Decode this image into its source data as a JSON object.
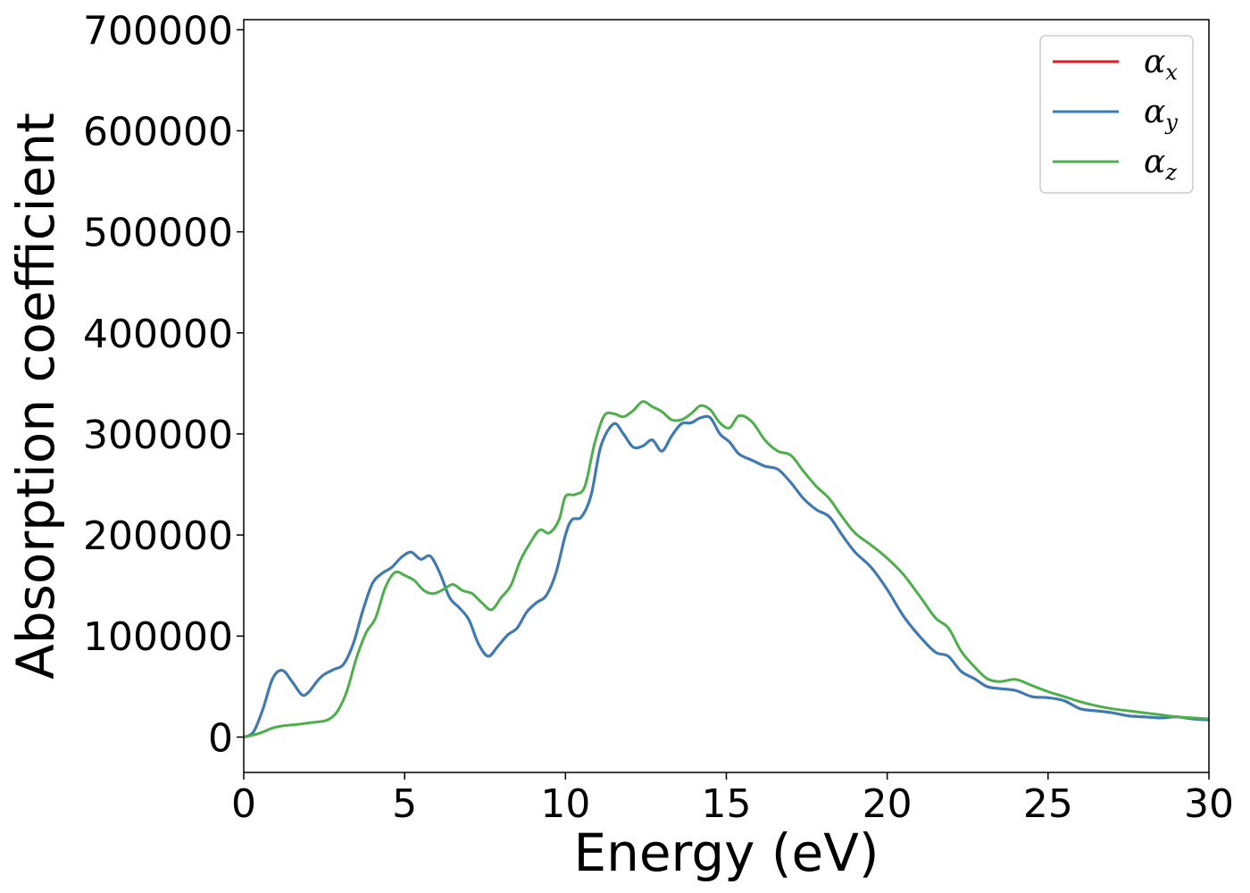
{
  "chart_data": {
    "type": "line",
    "xlabel": "Energy (eV)",
    "ylabel": "Absorption coefficient",
    "xlim": [
      0,
      30
    ],
    "ylim": [
      -35000,
      710000
    ],
    "x_ticks": [
      0,
      5,
      10,
      15,
      20,
      25,
      30
    ],
    "x_tick_labels": [
      "0",
      "5",
      "10",
      "15",
      "20",
      "25",
      "30"
    ],
    "y_ticks": [
      0,
      100000,
      200000,
      300000,
      400000,
      500000,
      600000,
      700000
    ],
    "y_tick_labels": [
      "0",
      "100000",
      "200000",
      "300000",
      "400000",
      "500000",
      "600000",
      "700000"
    ],
    "grid": false,
    "legend_position": "top-right",
    "series": [
      {
        "name": "α",
        "subscript": "x",
        "color": "#e41a1c",
        "x": [
          0,
          0.3,
          0.6,
          0.9,
          1.2,
          1.5,
          1.8,
          2.0,
          2.3,
          2.5,
          2.8,
          3.1,
          3.4,
          3.7,
          4.0,
          4.3,
          4.6,
          4.9,
          5.2,
          5.5,
          5.8,
          6.1,
          6.4,
          6.7,
          7.0,
          7.3,
          7.6,
          7.9,
          8.2,
          8.5,
          8.8,
          9.1,
          9.4,
          9.7,
          10.0,
          10.2,
          10.5,
          10.8,
          11.1,
          11.5,
          11.8,
          12.1,
          12.4,
          12.7,
          13.0,
          13.3,
          13.6,
          13.9,
          14.2,
          14.5,
          14.8,
          15.1,
          15.4,
          15.8,
          16.2,
          16.6,
          17.0,
          17.4,
          17.8,
          18.2,
          18.6,
          19.0,
          19.5,
          20.0,
          20.5,
          21.0,
          21.5,
          21.9,
          22.3,
          22.7,
          23.1,
          23.5,
          24.0,
          24.5,
          25.0,
          25.5,
          26.0,
          26.5,
          27.0,
          27.5,
          28.0,
          28.5,
          29.0,
          29.5,
          30.0
        ],
        "y": [
          0,
          5000,
          28000,
          58000,
          66000,
          55000,
          42000,
          44000,
          56000,
          62000,
          67000,
          72000,
          92000,
          125000,
          152000,
          162000,
          168000,
          178000,
          183000,
          176000,
          179000,
          162000,
          138000,
          128000,
          116000,
          92000,
          80000,
          90000,
          101000,
          108000,
          124000,
          133000,
          140000,
          162000,
          200000,
          215000,
          218000,
          240000,
          288000,
          310000,
          300000,
          287000,
          288000,
          294000,
          283000,
          298000,
          310000,
          311000,
          316000,
          316000,
          300000,
          292000,
          280000,
          274000,
          268000,
          265000,
          252000,
          236000,
          225000,
          218000,
          200000,
          183000,
          168000,
          146000,
          120000,
          100000,
          84000,
          80000,
          65000,
          58000,
          50000,
          48000,
          46000,
          40000,
          39000,
          36000,
          28000,
          26000,
          24000,
          21000,
          20000,
          19000,
          20000,
          18000,
          17000
        ]
      },
      {
        "name": "α",
        "subscript": "y",
        "color": "#377eb8",
        "x": [
          0,
          0.3,
          0.6,
          0.9,
          1.2,
          1.5,
          1.8,
          2.0,
          2.3,
          2.5,
          2.8,
          3.1,
          3.4,
          3.7,
          4.0,
          4.3,
          4.6,
          4.9,
          5.2,
          5.5,
          5.8,
          6.1,
          6.4,
          6.7,
          7.0,
          7.3,
          7.6,
          7.9,
          8.2,
          8.5,
          8.8,
          9.1,
          9.4,
          9.7,
          10.0,
          10.2,
          10.5,
          10.8,
          11.1,
          11.5,
          11.8,
          12.1,
          12.4,
          12.7,
          13.0,
          13.3,
          13.6,
          13.9,
          14.2,
          14.5,
          14.8,
          15.1,
          15.4,
          15.8,
          16.2,
          16.6,
          17.0,
          17.4,
          17.8,
          18.2,
          18.6,
          19.0,
          19.5,
          20.0,
          20.5,
          21.0,
          21.5,
          21.9,
          22.3,
          22.7,
          23.1,
          23.5,
          24.0,
          24.5,
          25.0,
          25.5,
          26.0,
          26.5,
          27.0,
          27.5,
          28.0,
          28.5,
          29.0,
          29.5,
          30.0
        ],
        "y": [
          0,
          5000,
          28000,
          58000,
          66000,
          55000,
          42000,
          44000,
          56000,
          62000,
          67000,
          72000,
          92000,
          125000,
          152000,
          162000,
          168000,
          178000,
          183000,
          176000,
          179000,
          162000,
          138000,
          128000,
          116000,
          92000,
          80000,
          90000,
          101000,
          108000,
          124000,
          133000,
          140000,
          162000,
          200000,
          215000,
          218000,
          240000,
          288000,
          310000,
          300000,
          287000,
          288000,
          294000,
          283000,
          298000,
          310000,
          311000,
          316000,
          316000,
          300000,
          292000,
          280000,
          274000,
          268000,
          265000,
          252000,
          236000,
          225000,
          218000,
          200000,
          183000,
          168000,
          146000,
          120000,
          100000,
          84000,
          80000,
          65000,
          58000,
          50000,
          48000,
          46000,
          40000,
          39000,
          36000,
          28000,
          26000,
          24000,
          21000,
          20000,
          19000,
          20000,
          18000,
          17000
        ]
      },
      {
        "name": "α",
        "subscript": "z",
        "color": "#4daf4a",
        "x": [
          0,
          0.3,
          0.6,
          0.9,
          1.2,
          1.5,
          1.8,
          2.0,
          2.3,
          2.6,
          2.9,
          3.2,
          3.5,
          3.8,
          4.1,
          4.4,
          4.7,
          5.0,
          5.3,
          5.6,
          5.9,
          6.2,
          6.5,
          6.8,
          7.1,
          7.4,
          7.7,
          8.0,
          8.3,
          8.6,
          8.9,
          9.2,
          9.5,
          9.8,
          10.0,
          10.3,
          10.6,
          10.9,
          11.2,
          11.5,
          11.8,
          12.1,
          12.4,
          12.7,
          13.0,
          13.3,
          13.6,
          13.9,
          14.2,
          14.5,
          14.8,
          15.1,
          15.4,
          15.8,
          16.2,
          16.6,
          17.0,
          17.4,
          17.8,
          18.2,
          18.6,
          19.0,
          19.5,
          20.0,
          20.5,
          21.0,
          21.5,
          21.9,
          22.3,
          22.7,
          23.1,
          23.5,
          24.0,
          24.5,
          25.0,
          25.5,
          26.0,
          26.5,
          27.0,
          27.5,
          28.0,
          28.5,
          29.0,
          29.5,
          30.0
        ],
        "y": [
          0,
          2000,
          5000,
          9000,
          11000,
          12000,
          13000,
          14000,
          15000,
          17000,
          25000,
          45000,
          78000,
          103000,
          118000,
          148000,
          163000,
          160000,
          155000,
          145000,
          142000,
          146000,
          151000,
          145000,
          142000,
          133000,
          126000,
          138000,
          150000,
          175000,
          192000,
          205000,
          202000,
          215000,
          238000,
          240000,
          248000,
          290000,
          318000,
          320000,
          317000,
          323000,
          332000,
          327000,
          322000,
          314000,
          314000,
          320000,
          328000,
          324000,
          311000,
          306000,
          318000,
          312000,
          294000,
          283000,
          279000,
          263000,
          248000,
          236000,
          218000,
          202000,
          190000,
          177000,
          161000,
          140000,
          118000,
          108000,
          85000,
          70000,
          58000,
          55000,
          57000,
          51000,
          45000,
          40000,
          35000,
          31000,
          28000,
          26000,
          24000,
          22000,
          20000,
          19000,
          18000
        ]
      }
    ]
  }
}
